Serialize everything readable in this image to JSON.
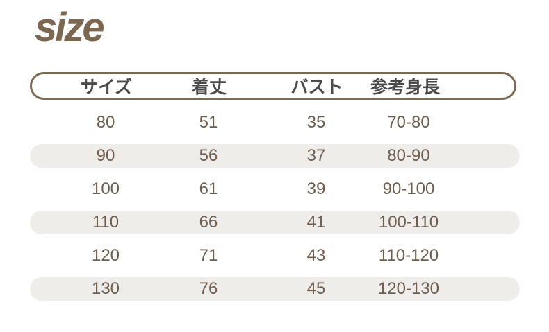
{
  "chart_data": {
    "type": "table",
    "title": "size",
    "columns": [
      "サイズ",
      "着丈",
      "バスト",
      "参考身長"
    ],
    "rows": [
      [
        "80",
        "51",
        "35",
        "70-80"
      ],
      [
        "90",
        "56",
        "37",
        "80-90"
      ],
      [
        "100",
        "61",
        "39",
        "90-100"
      ],
      [
        "110",
        "66",
        "41",
        "100-110"
      ],
      [
        "120",
        "71",
        "43",
        "110-120"
      ],
      [
        "130",
        "76",
        "45",
        "120-130"
      ]
    ]
  },
  "colors": {
    "title": "#7c6750",
    "header_border": "#7e6952",
    "header_text": "#4a4a4a",
    "cell_text": "#6f5e4e",
    "stripe": "#efedea"
  }
}
